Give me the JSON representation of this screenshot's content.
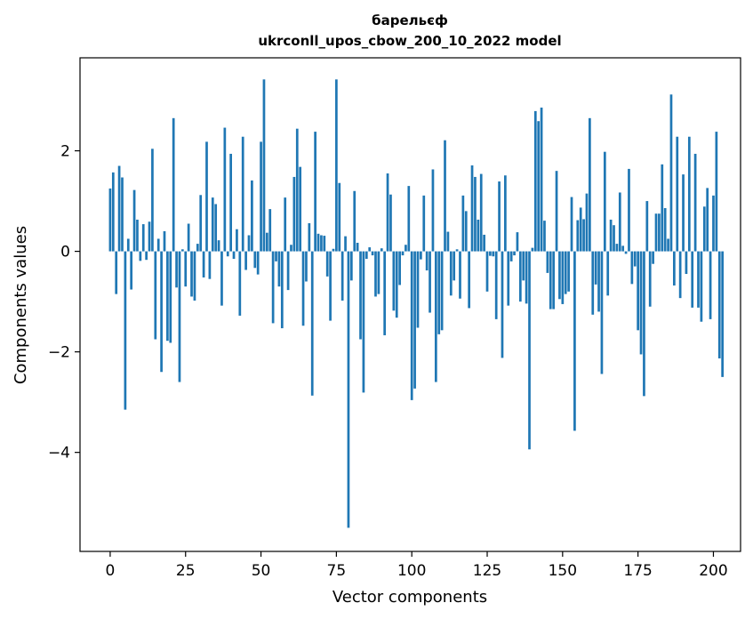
{
  "chart_data": {
    "type": "bar",
    "title": "барельєф",
    "subtitle": "ukrconll_upos_cbow_200_10_2022 model",
    "xlabel": "Vector components",
    "ylabel": "Components values",
    "xlim": [
      -10,
      209
    ],
    "ylim": [
      -5.97,
      3.85
    ],
    "xticks": [
      0,
      25,
      50,
      75,
      100,
      125,
      150,
      175,
      200
    ],
    "yticks": [
      -4,
      -2,
      0,
      2
    ],
    "ytick_labels": [
      "−4",
      "−2",
      "0",
      "2"
    ],
    "bar_color": "#1f77b4",
    "grid": false,
    "values": [
      1.25,
      1.57,
      -0.85,
      1.7,
      1.47,
      -3.15,
      0.25,
      -0.76,
      1.22,
      0.63,
      -0.19,
      0.54,
      -0.17,
      0.59,
      2.04,
      -1.75,
      0.25,
      -2.4,
      0.4,
      -1.78,
      -1.82,
      2.65,
      -0.72,
      -2.6,
      0.04,
      -0.7,
      0.55,
      -0.9,
      -0.98,
      0.15,
      1.12,
      -0.52,
      2.18,
      -0.55,
      1.07,
      0.94,
      0.22,
      -1.08,
      2.46,
      -0.1,
      1.94,
      -0.15,
      0.44,
      -1.28,
      2.28,
      -0.37,
      0.32,
      1.41,
      -0.33,
      -0.46,
      2.18,
      3.42,
      0.37,
      0.84,
      -1.43,
      -0.2,
      -0.7,
      -1.53,
      1.07,
      -0.77,
      0.13,
      1.48,
      2.44,
      1.68,
      -1.48,
      -0.6,
      0.56,
      -2.87,
      2.38,
      0.35,
      0.32,
      0.31,
      -0.5,
      -1.38,
      0.05,
      3.42,
      1.36,
      -0.98,
      0.3,
      -5.5,
      -0.58,
      1.2,
      0.17,
      -1.75,
      -2.81,
      -0.15,
      0.08,
      -0.08,
      -0.9,
      -0.85,
      0.06,
      -1.67,
      1.55,
      1.13,
      -1.18,
      -1.32,
      -0.67,
      -0.08,
      0.13,
      1.3,
      -2.96,
      -2.73,
      -1.52,
      -0.16,
      1.11,
      -0.38,
      -1.22,
      1.63,
      -2.6,
      -1.65,
      -1.57,
      2.21,
      0.39,
      -0.88,
      -0.58,
      0.04,
      -0.94,
      1.11,
      0.8,
      -1.13,
      1.71,
      1.48,
      0.63,
      1.54,
      0.33,
      -0.8,
      -0.09,
      -0.1,
      -1.35,
      1.39,
      -2.12,
      1.51,
      -1.08,
      -0.2,
      -0.08,
      0.38,
      -1.0,
      -0.58,
      -1.04,
      -3.94,
      0.07,
      2.79,
      2.59,
      2.86,
      0.61,
      -0.43,
      -1.15,
      -1.15,
      1.6,
      -0.95,
      -1.05,
      -0.85,
      -0.8,
      1.08,
      -3.57,
      0.62,
      0.87,
      0.64,
      1.15,
      2.65,
      -1.26,
      -0.66,
      -1.2,
      -2.44,
      1.98,
      -0.88,
      0.63,
      0.52,
      0.15,
      1.17,
      0.11,
      -0.05,
      1.64,
      -0.65,
      -0.3,
      -1.57,
      -2.05,
      -2.88,
      1.0,
      -1.1,
      -0.25,
      0.75,
      0.75,
      1.73,
      0.86,
      0.25,
      3.12,
      -0.68,
      2.28,
      -0.93,
      1.53,
      -0.45,
      2.28,
      -1.12,
      1.94,
      -1.12,
      -1.4,
      0.89,
      1.26,
      -1.35,
      1.11,
      2.38,
      -2.13,
      -2.5
    ]
  }
}
